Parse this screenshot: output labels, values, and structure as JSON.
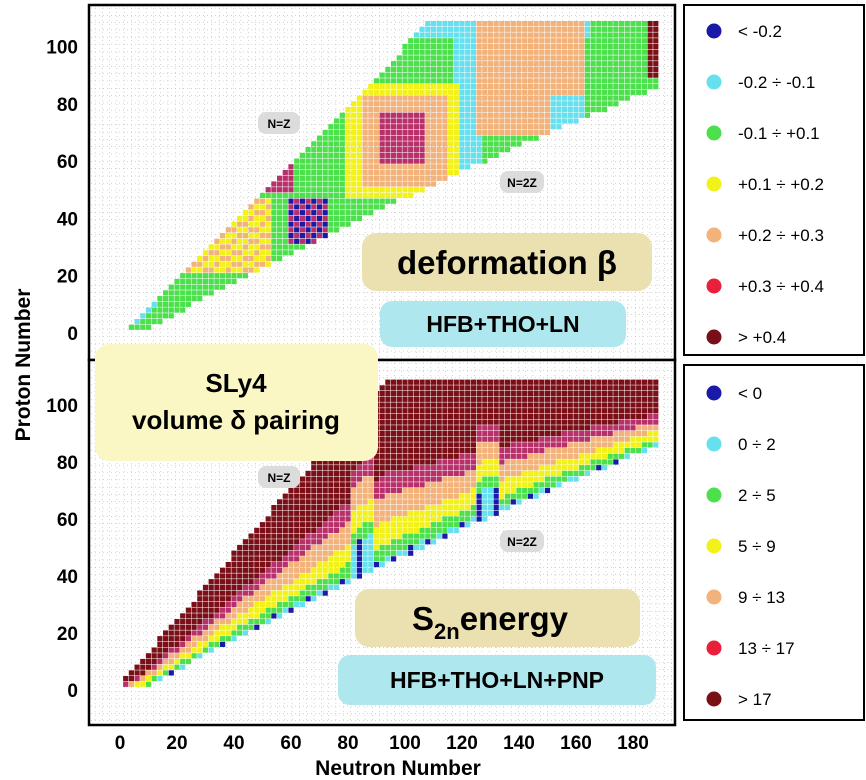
{
  "y_axis_label": "Proton Number",
  "x_axis_label": "Neutron Number",
  "colors": {
    "dark_blue": "#1a1aa8",
    "cyan": "#66e0ee",
    "green": "#4de04d",
    "yellow": "#f2f21a",
    "orange": "#f2b27a",
    "red": "#e8203a",
    "dark_red": "#7a0f18",
    "magenta": "#b8306a",
    "tan_box": "#ebe1b0",
    "cyan_box": "#aee8ee",
    "yellow_box": "#fbf7c4",
    "grey_box": "#dcdcdc"
  },
  "pairing_label_line1": "SLy4",
  "pairing_label_line2": "volume δ pairing",
  "chart_data": [
    {
      "type": "heatmap",
      "title": "deformation β",
      "subtitle": "HFB+THO+LN",
      "annotations": [
        "N=Z",
        "N=2Z"
      ],
      "xlim": [
        -8,
        192
      ],
      "ylim": [
        -8,
        112
      ],
      "yticks": [
        0,
        20,
        40,
        60,
        80,
        100
      ],
      "legend_position": "right",
      "legend": [
        {
          "label": "< -0.2",
          "color": "#1a1aa8"
        },
        {
          "label": "-0.2 ÷ -0.1",
          "color": "#66e0ee"
        },
        {
          "label": "-0.1 ÷ +0.1",
          "color": "#4de04d"
        },
        {
          "label": "+0.1 ÷ +0.2",
          "color": "#f2f21a"
        },
        {
          "label": "+0.2 ÷ +0.3",
          "color": "#f2b27a"
        },
        {
          "label": "+0.3 ÷ +0.4",
          "color": "#e8203a"
        },
        {
          "label": "> +0.4",
          "color": "#7a0f18"
        }
      ],
      "regions": [
        {
          "class": "-0.1 ÷ +0.1",
          "n": [
            2,
            60
          ],
          "z": [
            2,
            60
          ]
        },
        {
          "class": "+0.2 ÷ +0.3",
          "n": [
            20,
            50
          ],
          "z": [
            22,
            46
          ]
        },
        {
          "class": "< -0.2",
          "n": [
            60,
            72
          ],
          "z": [
            32,
            46
          ]
        },
        {
          "class": "+0.2 ÷ +0.3",
          "n": [
            86,
            112
          ],
          "z": [
            54,
            82
          ]
        },
        {
          "class": "+0.3 ÷ +0.4",
          "n": [
            92,
            106
          ],
          "z": [
            60,
            76
          ]
        },
        {
          "class": "+0.2 ÷ +0.3",
          "n": [
            126,
            160
          ],
          "z": [
            70,
            108
          ]
        },
        {
          "class": "-0.1 ÷ +0.1",
          "n": [
            166,
            188
          ],
          "z": [
            80,
            108
          ]
        }
      ]
    },
    {
      "type": "heatmap",
      "title": "S2n energy",
      "subtitle": "HFB+THO+LN+PNP",
      "annotations": [
        "N=Z",
        "N=2Z"
      ],
      "xlim": [
        -8,
        192
      ],
      "ylim": [
        -8,
        112
      ],
      "xticks": [
        0,
        20,
        40,
        60,
        80,
        100,
        120,
        140,
        160,
        180
      ],
      "yticks": [
        0,
        20,
        40,
        60,
        80,
        100
      ],
      "legend_position": "right",
      "legend": [
        {
          "label": "< 0",
          "color": "#1a1aa8"
        },
        {
          "label": "0 ÷ 2",
          "color": "#66e0ee"
        },
        {
          "label": "2 ÷ 5",
          "color": "#4de04d"
        },
        {
          "label": "5 ÷ 9",
          "color": "#f2f21a"
        },
        {
          "label": "9 ÷ 13",
          "color": "#f2b27a"
        },
        {
          "label": "13 ÷ 17",
          "color": "#e8203a"
        },
        {
          "label": "> 17",
          "color": "#7a0f18"
        }
      ],
      "shell_closures_n": [
        82,
        126
      ]
    }
  ]
}
